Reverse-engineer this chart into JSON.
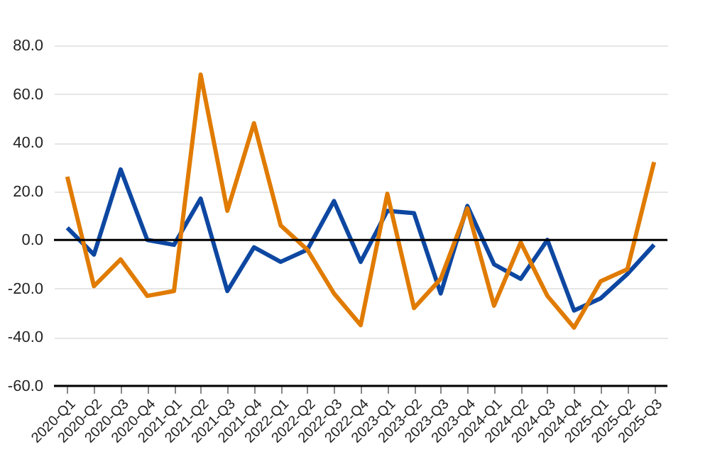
{
  "chart_data": {
    "type": "line",
    "categories": [
      "2020-Q1",
      "2020-Q2",
      "2020-Q3",
      "2020-Q4",
      "2021-Q1",
      "2021-Q2",
      "2021-Q3",
      "2021-Q4",
      "2022-Q1",
      "2022-Q2",
      "2022-Q3",
      "2022-Q4",
      "2023-Q1",
      "2023-Q2",
      "2023-Q3",
      "2023-Q4",
      "2024-Q1",
      "2024-Q2",
      "2024-Q3",
      "2024-Q4",
      "2025-Q1",
      "2025-Q2",
      "2025-Q3"
    ],
    "series": [
      {
        "color": "#0d47a1",
        "values": [
          5,
          -6,
          29,
          0,
          -2,
          17,
          -21,
          -3,
          -9,
          -4,
          16,
          -9,
          12,
          11,
          -22,
          14,
          -10,
          -16,
          0,
          -29,
          -24,
          -14,
          -2
        ]
      },
      {
        "color": "#e07b00",
        "values": [
          26,
          -19,
          -8,
          -23,
          -21,
          68,
          12,
          48,
          6,
          -4,
          -22,
          -35,
          19,
          -28,
          -16,
          13,
          -27,
          -1,
          -23,
          -36,
          -17,
          -12,
          32
        ]
      }
    ],
    "ylim": [
      -60,
      80
    ],
    "yticks": [
      {
        "value": -60,
        "label": "-60.0"
      },
      {
        "value": -40,
        "label": "-40.0"
      },
      {
        "value": -20,
        "label": "-20.0"
      },
      {
        "value": 0,
        "label": "0.0"
      },
      {
        "value": 20,
        "label": "20.0"
      },
      {
        "value": 40,
        "label": "40.0"
      },
      {
        "value": 60,
        "label": "60.0"
      },
      {
        "value": 80,
        "label": "80.0"
      }
    ],
    "grid": "y",
    "ref_lines": [
      {
        "axis": "y",
        "value": 0,
        "color": "#000000"
      }
    ]
  }
}
